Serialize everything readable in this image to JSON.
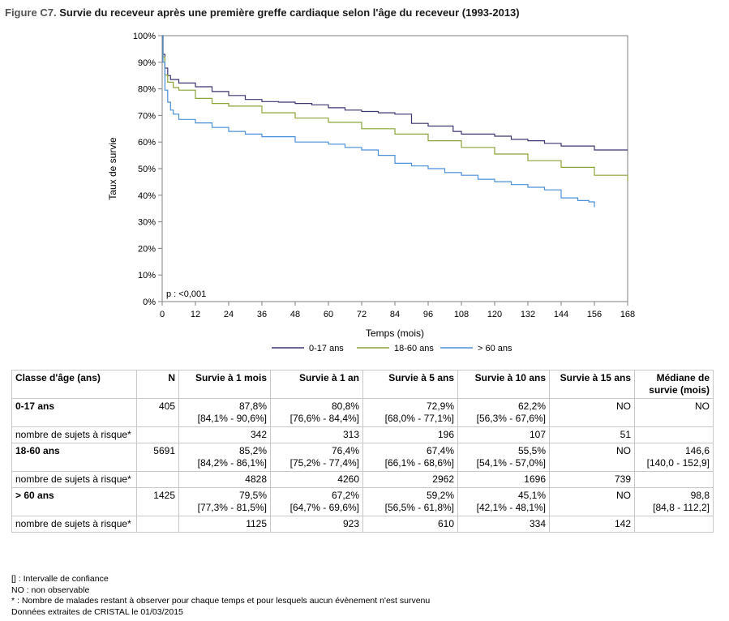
{
  "figure": {
    "prefix": "Figure C7.",
    "title": "Survie du receveur après une première greffe cardiaque selon l'âge du receveur (1993-2013)"
  },
  "chart_data": {
    "type": "line",
    "title": "Survie du receveur après une première greffe cardiaque selon l'âge du receveur (1993-2013)",
    "xlabel": "Temps (mois)",
    "ylabel": "Taux de survie",
    "xlim": [
      0,
      168
    ],
    "ylim": [
      0,
      100
    ],
    "xticks": [
      "0",
      "12",
      "24",
      "36",
      "48",
      "60",
      "72",
      "84",
      "96",
      "108",
      "120",
      "132",
      "144",
      "156",
      "168"
    ],
    "yticks": [
      "0%",
      "10%",
      "20%",
      "30%",
      "40%",
      "50%",
      "60%",
      "70%",
      "80%",
      "90%",
      "100%"
    ],
    "annotation": "p : <0,001",
    "legend_position": "bottom",
    "series": [
      {
        "name": "0-17 ans",
        "color": "#3b3570",
        "points": [
          [
            0,
            100
          ],
          [
            0.3,
            93
          ],
          [
            1,
            87.8
          ],
          [
            2,
            85
          ],
          [
            3,
            83.5
          ],
          [
            6,
            82.2
          ],
          [
            12,
            80.8
          ],
          [
            18,
            79
          ],
          [
            24,
            77.5
          ],
          [
            30,
            76
          ],
          [
            36,
            75.2
          ],
          [
            42,
            75
          ],
          [
            48,
            74.5
          ],
          [
            54,
            74
          ],
          [
            60,
            72.9
          ],
          [
            66,
            72
          ],
          [
            72,
            71.5
          ],
          [
            78,
            71
          ],
          [
            84,
            70.5
          ],
          [
            90,
            67
          ],
          [
            96,
            66
          ],
          [
            102,
            66
          ],
          [
            105,
            64
          ],
          [
            108,
            63
          ],
          [
            114,
            63
          ],
          [
            120,
            62.2
          ],
          [
            126,
            61
          ],
          [
            132,
            60.5
          ],
          [
            138,
            59.5
          ],
          [
            144,
            58.5
          ],
          [
            150,
            58.5
          ],
          [
            156,
            57
          ],
          [
            162,
            57
          ],
          [
            168,
            57
          ]
        ]
      },
      {
        "name": "18-60 ans",
        "color": "#8aa338",
        "points": [
          [
            0,
            100
          ],
          [
            0.3,
            92
          ],
          [
            1,
            85.2
          ],
          [
            2,
            82.5
          ],
          [
            4,
            80.5
          ],
          [
            6,
            79.5
          ],
          [
            12,
            76.4
          ],
          [
            18,
            74.5
          ],
          [
            24,
            73.5
          ],
          [
            36,
            71
          ],
          [
            48,
            69
          ],
          [
            60,
            67.4
          ],
          [
            72,
            65
          ],
          [
            84,
            63
          ],
          [
            96,
            60.5
          ],
          [
            108,
            58
          ],
          [
            120,
            55.5
          ],
          [
            132,
            53
          ],
          [
            144,
            50.5
          ],
          [
            156,
            47.5
          ],
          [
            168,
            45.5
          ]
        ]
      },
      {
        "name": "> 60 ans",
        "color": "#4a8fd9",
        "points": [
          [
            0,
            100
          ],
          [
            0.3,
            90
          ],
          [
            1,
            79.5
          ],
          [
            2,
            75
          ],
          [
            3,
            72
          ],
          [
            4,
            70.5
          ],
          [
            6,
            68.5
          ],
          [
            12,
            67.2
          ],
          [
            18,
            65.5
          ],
          [
            24,
            64
          ],
          [
            30,
            63
          ],
          [
            36,
            62
          ],
          [
            48,
            60
          ],
          [
            60,
            59.2
          ],
          [
            66,
            58
          ],
          [
            72,
            57
          ],
          [
            78,
            55
          ],
          [
            84,
            52
          ],
          [
            90,
            51
          ],
          [
            96,
            50
          ],
          [
            102,
            48.5
          ],
          [
            108,
            47.5
          ],
          [
            114,
            46
          ],
          [
            120,
            45.1
          ],
          [
            126,
            44
          ],
          [
            132,
            43
          ],
          [
            138,
            42
          ],
          [
            144,
            39
          ],
          [
            150,
            38
          ],
          [
            154,
            37.5
          ],
          [
            156,
            35.5
          ]
        ]
      }
    ]
  },
  "table": {
    "headers": [
      "Classe d'âge (ans)",
      "N",
      "Survie à 1 mois",
      "Survie à 1 an",
      "Survie à 5 ans",
      "Survie à 10 ans",
      "Survie à 15 ans",
      "Médiane de survie (mois)"
    ],
    "groups": [
      {
        "label": "0-17 ans",
        "n": "405",
        "cells": [
          [
            "87,8%",
            "[84,1% - 90,6%]"
          ],
          [
            "80,8%",
            "[76,6% - 84,4%]"
          ],
          [
            "72,9%",
            "[68,0% - 77,1%]"
          ],
          [
            "62,2%",
            "[56,3% - 67,6%]"
          ],
          [
            "NO",
            ""
          ],
          [
            "NO",
            ""
          ]
        ],
        "risk_label": "nombre de sujets à risque*",
        "risk": [
          "342",
          "313",
          "196",
          "107",
          "51",
          ""
        ]
      },
      {
        "label": "18-60 ans",
        "n": "5691",
        "cells": [
          [
            "85,2%",
            "[84,2% - 86,1%]"
          ],
          [
            "76,4%",
            "[75,2% - 77,4%]"
          ],
          [
            "67,4%",
            "[66,1% - 68,6%]"
          ],
          [
            "55,5%",
            "[54,1% - 57,0%]"
          ],
          [
            "NO",
            ""
          ],
          [
            "146,6",
            "[140,0 - 152,9]"
          ]
        ],
        "risk_label": "nombre de sujets à risque*",
        "risk": [
          "4828",
          "4260",
          "2962",
          "1696",
          "739",
          ""
        ]
      },
      {
        "label": "> 60 ans",
        "n": "1425",
        "cells": [
          [
            "79,5%",
            "[77,3% - 81,5%]"
          ],
          [
            "67,2%",
            "[64,7% - 69,6%]"
          ],
          [
            "59,2%",
            "[56,5% - 61,8%]"
          ],
          [
            "45,1%",
            "[42,1% - 48,1%]"
          ],
          [
            "NO",
            ""
          ],
          [
            "98,8",
            "[84,8 - 112,2]"
          ]
        ],
        "risk_label": "nombre de sujets à risque*",
        "risk": [
          "1125",
          "923",
          "610",
          "334",
          "142",
          ""
        ]
      }
    ]
  },
  "notes": [
    "[] : Intervalle de confiance",
    "NO : non observable",
    "* : Nombre de malades restant à observer pour chaque temps et pour lesquels aucun évènement n'est survenu",
    "Données extraites de CRISTAL le 01/03/2015"
  ]
}
